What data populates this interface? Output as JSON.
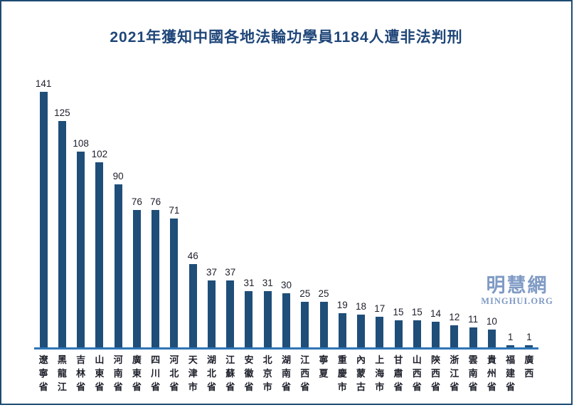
{
  "title": {
    "text": "2021年獲知中國各地法輪功學員1184人遭非法判刑",
    "color": "#1f4679"
  },
  "watermark": {
    "site_name_cjk": "明慧網",
    "site_name_latin": "MINGHUI.ORG",
    "color": "#7f9ac4"
  },
  "chart_data": {
    "type": "bar",
    "title": "2021年獲知中國各地法輪功學員1184人遭非法判刑",
    "total_persons": 1184,
    "year": "2021",
    "categories": [
      "遼寧省",
      "黑龍江",
      "吉林省",
      "山東省",
      "河南省",
      "廣東省",
      "四川省",
      "河北省",
      "天津市",
      "湖北省",
      "江蘇省",
      "安徽省",
      "北京市",
      "湖南省",
      "江西省",
      "寧夏",
      "重慶市",
      "內蒙古",
      "上海市",
      "甘肅省",
      "山西省",
      "陝西省",
      "浙江省",
      "雲南省",
      "貴州省",
      "福建省",
      "廣西"
    ],
    "values": [
      141,
      125,
      108,
      102,
      90,
      76,
      76,
      71,
      46,
      37,
      37,
      31,
      31,
      30,
      25,
      25,
      19,
      18,
      17,
      15,
      15,
      14,
      12,
      11,
      10,
      1,
      1
    ],
    "data_labels": true,
    "gridlines": false,
    "legend": "none",
    "y_axis_visible": false,
    "bar_color": "#1f4e79",
    "axis_line_color": "#2e75b6",
    "label_color": "#1d1f2a",
    "frame_border_color": "#1d4b72"
  }
}
